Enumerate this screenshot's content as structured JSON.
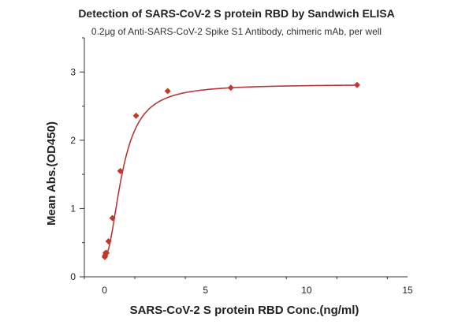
{
  "chart_data": {
    "type": "scatter",
    "title": "Detection of SARS-CoV-2 S protein RBD by Sandwich ELISA",
    "subtitle": "0.2μg of Anti-SARS-CoV-2 Spike S1 Antibody, chimeric mAb,  per well",
    "xlabel": "SARS-CoV-2 S protein RBD Conc.(ng/ml)",
    "ylabel": "Mean Abs.(OD450)",
    "xlim": [
      -1,
      15
    ],
    "ylim": [
      0,
      3.5
    ],
    "x_ticks": [
      0,
      5,
      10,
      15
    ],
    "y_ticks": [
      0,
      1,
      2,
      3
    ],
    "grid": false,
    "series": [
      {
        "marker": "diamond",
        "color": "#c0392b",
        "x": [
          0.012,
          0.024,
          0.049,
          0.098,
          0.195,
          0.39,
          0.78,
          1.56,
          3.125,
          6.25,
          12.5
        ],
        "y": [
          0.29,
          0.31,
          0.35,
          0.35,
          0.52,
          0.86,
          1.55,
          2.36,
          2.72,
          2.77,
          2.81
        ]
      }
    ],
    "fit_curve": {
      "color": "#b03a3a",
      "model": "4PL",
      "params": {
        "bottom": 0.29,
        "top": 2.82,
        "ec50": 0.9,
        "hill": 2.0
      }
    }
  }
}
